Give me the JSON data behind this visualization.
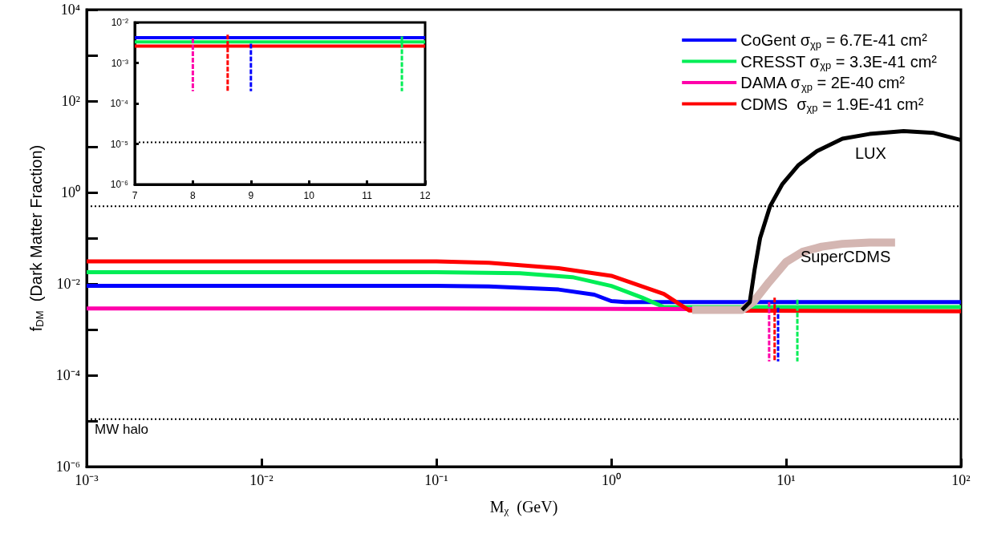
{
  "chart_data": [
    {
      "type": "line",
      "xlabel": "M$_{χ}$  (GeV)",
      "ylabel": "f$_{DM}$  (Dark Matter Fraction)",
      "log": "xy",
      "grid": false,
      "legend": "top right",
      "marker": "none",
      "xlim": [
        0.001,
        100
      ],
      "xticks": [
        {
          "value": 0.001,
          "label": "10⁻³"
        },
        {
          "value": 0.01,
          "label": "10⁻²"
        },
        {
          "value": 0.1,
          "label": "10⁻¹"
        },
        {
          "value": 1,
          "label": "10⁰"
        },
        {
          "value": 10,
          "label": "10¹"
        },
        {
          "value": 100,
          "label": "10²"
        }
      ],
      "ylim": [
        1e-06,
        10000
      ],
      "yticks": [
        {
          "value": 1e-06,
          "label": "10⁻⁶"
        },
        {
          "value": 1e-05,
          "label": null
        },
        {
          "value": 0.0001,
          "label": "10⁻⁴"
        },
        {
          "value": 0.001,
          "label": null
        },
        {
          "value": 0.01,
          "label": "10⁻²"
        },
        {
          "value": 0.1,
          "label": null
        },
        {
          "value": 1,
          "label": "10⁰"
        },
        {
          "value": 10,
          "label": null
        },
        {
          "value": 100,
          "label": "10²"
        },
        {
          "value": 1000,
          "label": null
        },
        {
          "value": 10000,
          "label": "10⁴"
        }
      ],
      "series": [
        {
          "name": "CoGent σ$_{χp}$ = 6.7E-41 cm²",
          "color": "#0000ff",
          "x": [
            0.001,
            0.1,
            0.2,
            0.5,
            0.8,
            1.0,
            1.2,
            100
          ],
          "values": [
            0.009,
            0.009,
            0.0088,
            0.0075,
            0.0058,
            0.0042,
            0.004,
            0.004
          ]
        },
        {
          "name": "CRESST σ$_{χp}$ = 3.3E-41 cm²",
          "color": "#00ee55",
          "x": [
            0.001,
            0.1,
            0.3,
            0.6,
            1.0,
            1.5,
            2.0,
            100
          ],
          "values": [
            0.018,
            0.018,
            0.017,
            0.014,
            0.009,
            0.005,
            0.0031,
            0.0031
          ]
        },
        {
          "name": "DAMA σ$_{χp}$ = 2E-40 cm²",
          "color": "#ff00aa",
          "x": [
            0.001,
            0.1,
            3
          ],
          "values": [
            0.0029,
            0.0029,
            0.0028
          ]
        },
        {
          "name": "CDMS  σ$_{χp}$ = 1.9E-41 cm²",
          "color": "#ff0000",
          "x": [
            0.001,
            0.1,
            0.2,
            0.5,
            1.0,
            2.0,
            2.8,
            100
          ],
          "values": [
            0.031,
            0.031,
            0.029,
            0.022,
            0.015,
            0.006,
            0.0026,
            0.0025
          ]
        },
        {
          "color": "#d4b6b2",
          "x": [
            2.9,
            5.6,
            6.5,
            8,
            10,
            12.4,
            16,
            21,
            30,
            42
          ],
          "values": [
            0.0027,
            0.0027,
            0.004,
            0.011,
            0.03,
            0.05,
            0.065,
            0.075,
            0.08,
            0.08
          ]
        },
        {
          "color": "#000000",
          "x": [
            5.6,
            6.2,
            6.6,
            7.1,
            8.1,
            9.5,
            11.8,
            15,
            21,
            30,
            47,
            70,
            100
          ],
          "values": [
            0.0027,
            0.004,
            0.02,
            0.1,
            0.5,
            1.5,
            4,
            8,
            15,
            19,
            22,
            20,
            14
          ]
        },
        {
          "color": "#ff00aa",
          "line_style": "dashed",
          "x": [
            8,
            8
          ],
          "values": [
            0.004,
            0.0002
          ]
        },
        {
          "color": "#ff0000",
          "line_style": "dashed",
          "x": [
            8.6,
            8.6
          ],
          "values": [
            0.005,
            0.0002
          ]
        },
        {
          "color": "#0000ff",
          "line_style": "dashed",
          "x": [
            9,
            9
          ],
          "values": [
            0.003,
            0.0002
          ]
        },
        {
          "color": "#00ee55",
          "line_style": "dashed",
          "x": [
            11.6,
            11.6
          ],
          "values": [
            0.0045,
            0.0002
          ]
        }
      ],
      "ref_lines": [
        {
          "axis": "y",
          "value": 0.5,
          "color": "#000000",
          "line_style": "dotted"
        },
        {
          "axis": "y",
          "value": 1.1e-05,
          "label": "MW halo",
          "color": "#000000",
          "line_style": "dotted"
        }
      ],
      "annotations": [
        "LUX",
        "SuperCDMS"
      ]
    },
    {
      "type": "line",
      "log": "y",
      "grid": false,
      "marker": "none",
      "xlim": [
        7,
        12
      ],
      "xticks": [
        7,
        8,
        9,
        10,
        11,
        12
      ],
      "ylim": [
        1e-06,
        0.01
      ],
      "yticks": [
        {
          "value": 1e-06,
          "label": "10⁻⁶"
        },
        {
          "value": 1e-05,
          "label": "10⁻⁵"
        },
        {
          "value": 0.0001,
          "label": "10⁻⁴"
        },
        {
          "value": 0.001,
          "label": "10⁻³"
        },
        {
          "value": 0.01,
          "label": "10⁻²"
        }
      ],
      "series": [
        {
          "color": "#0000ff",
          "x": [
            7,
            12
          ],
          "values": [
            0.0042,
            0.0042
          ]
        },
        {
          "color": "#00ee55",
          "x": [
            7,
            12
          ],
          "values": [
            0.0033,
            0.0033
          ]
        },
        {
          "color": "#ff0000",
          "x": [
            7,
            12
          ],
          "values": [
            0.0026,
            0.0026
          ]
        },
        {
          "color": "#ff00aa",
          "line_style": "dashed",
          "x": [
            8,
            8
          ],
          "values": [
            0.004,
            0.0002
          ]
        },
        {
          "color": "#ff0000",
          "line_style": "dashed",
          "x": [
            8.6,
            8.6
          ],
          "values": [
            0.005,
            0.0002
          ]
        },
        {
          "color": "#0000ff",
          "line_style": "dashed",
          "x": [
            9,
            9
          ],
          "values": [
            0.003,
            0.0002
          ]
        },
        {
          "color": "#00ee55",
          "line_style": "dashed",
          "x": [
            11.6,
            11.6
          ],
          "values": [
            0.0045,
            0.0002
          ]
        }
      ],
      "ref_lines": [
        {
          "axis": "y",
          "value": 1.1e-05,
          "color": "#000000",
          "line_style": "dotted"
        }
      ]
    }
  ]
}
